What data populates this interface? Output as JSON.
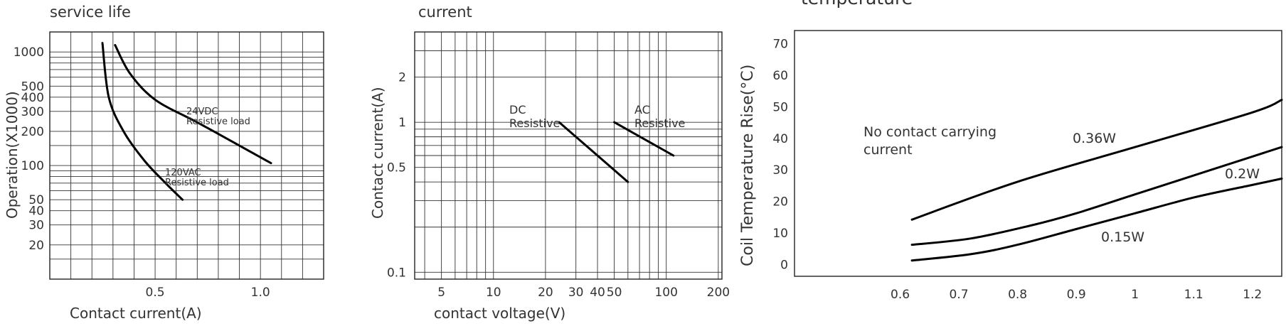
{
  "chart_data": [
    {
      "type": "line",
      "title": "service life",
      "xlabel": "Contact current(A)",
      "ylabel": "Operation(X1000)",
      "xlim": [
        0,
        1.3
      ],
      "ylim": [
        10,
        1500
      ],
      "x_ticks": [
        "0.5",
        "1.0"
      ],
      "y_ticks": [
        "1000",
        "500",
        "400",
        "300",
        "200",
        "100",
        "50",
        "40",
        "30",
        "20"
      ],
      "grid": true,
      "series": [
        {
          "name": "",
          "label_lines": [
            "120VAC",
            "Resistive load"
          ],
          "x": [
            0.25,
            0.28,
            0.35,
            0.45,
            0.55,
            0.63
          ],
          "y": [
            1200,
            400,
            200,
            110,
            70,
            50
          ]
        },
        {
          "name": "",
          "label_lines": [
            "24VDC",
            "Resistive load"
          ],
          "x": [
            0.31,
            0.38,
            0.5,
            0.7,
            0.9,
            1.05
          ],
          "y": [
            1150,
            650,
            380,
            240,
            150,
            105
          ]
        }
      ]
    },
    {
      "type": "line",
      "title": "current",
      "xlabel": "contact voltage(V)",
      "ylabel": "Contact current(A)",
      "x_scale": "log",
      "y_scale": "log",
      "xlim": [
        3.5,
        210
      ],
      "ylim": [
        0.09,
        4
      ],
      "x_ticks": [
        "5",
        "10",
        "20",
        "30",
        "40",
        "50",
        "100",
        "200"
      ],
      "y_ticks": [
        "2",
        "1",
        "0.5",
        "0.1"
      ],
      "grid": true,
      "series": [
        {
          "name": "",
          "label_lines": [
            "DC",
            "Resistive"
          ],
          "x": [
            24,
            60
          ],
          "y": [
            1.0,
            0.4
          ]
        },
        {
          "name": "",
          "label_lines": [
            "AC",
            "Resistive"
          ],
          "x": [
            50,
            110
          ],
          "y": [
            1.0,
            0.6
          ]
        }
      ]
    },
    {
      "type": "line",
      "title": "temperature",
      "xlabel": "",
      "ylabel": "Coil Temperature Rise(°C)",
      "xlim": [
        0.42,
        1.25
      ],
      "ylim": [
        -4,
        74
      ],
      "x_ticks": [
        "0.6",
        "0.7",
        "0.8",
        "0.9",
        "1",
        "1.1",
        "1.2"
      ],
      "y_ticks": [
        "70",
        "60",
        "50",
        "40",
        "30",
        "20",
        "10",
        "0"
      ],
      "grid": false,
      "annotation_lines": [
        "No contact carrying",
        "current"
      ],
      "series": [
        {
          "name": "0.36W",
          "x": [
            0.62,
            0.8,
            1.0,
            1.2,
            1.25
          ],
          "y": [
            14,
            26,
            37,
            48,
            52
          ]
        },
        {
          "name": "0.2W",
          "x": [
            0.62,
            0.72,
            0.82,
            0.9,
            1.0,
            1.1,
            1.2,
            1.25
          ],
          "y": [
            6,
            8,
            12,
            16,
            22,
            28,
            34,
            37
          ]
        },
        {
          "name": "0.15W",
          "x": [
            0.62,
            0.72,
            0.8,
            0.9,
            1.0,
            1.1,
            1.2,
            1.25
          ],
          "y": [
            1,
            3,
            6,
            11,
            16,
            21,
            25,
            27
          ]
        }
      ]
    }
  ]
}
